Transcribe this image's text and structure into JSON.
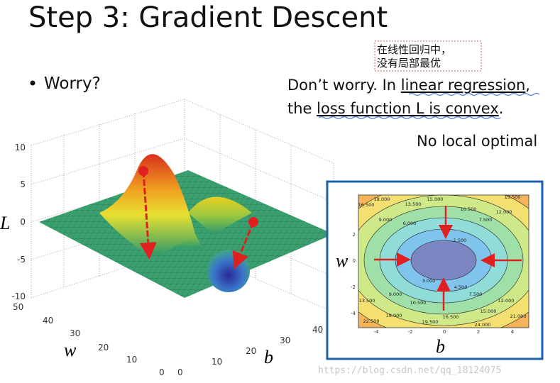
{
  "title": "Step 3: Gradient Descent",
  "bullet": "Worry?",
  "note": {
    "lines": [
      "在线性回归中，",
      "没有局部最优"
    ]
  },
  "answer": {
    "line1": {
      "before": "Don’t worry. In ",
      "underlined": "linear regression",
      "after": ","
    },
    "line2": {
      "before": "the ",
      "underlined": "loss function L is convex",
      "after": "."
    }
  },
  "conclusion": "No local optimal",
  "surface_plot": {
    "z_label": "L",
    "w_label": "w",
    "b_label": "b",
    "z_ticks": [
      "10",
      "5",
      "0",
      "-5",
      "-10"
    ],
    "w_ticks": [
      "50",
      "40",
      "30",
      "20",
      "10",
      "0"
    ],
    "b_ticks": [
      "0",
      "10",
      "20",
      "30",
      "40"
    ]
  },
  "contour_plot": {
    "x_label": "b",
    "y_label": "w",
    "x_ticks": [
      "-4",
      "-2",
      "0",
      "2",
      "4"
    ],
    "y_ticks": [
      "2",
      "0",
      "-2",
      "-4"
    ],
    "contour_labels": [
      "18.000",
      "16.500",
      "13.500",
      "15.000",
      "19.500",
      "10.500",
      "12.000",
      "9.000",
      "6.000",
      "7.500",
      "1.500",
      "3.000",
      "4.500",
      "9.000",
      "10.500",
      "7.500",
      "12.000",
      "13.500",
      "15.000",
      "18.000",
      "16.500",
      "19.500",
      "22.500",
      "24.000",
      "21.000"
    ]
  },
  "watermark": "https://blog.csdn.net/qq_18124075"
}
